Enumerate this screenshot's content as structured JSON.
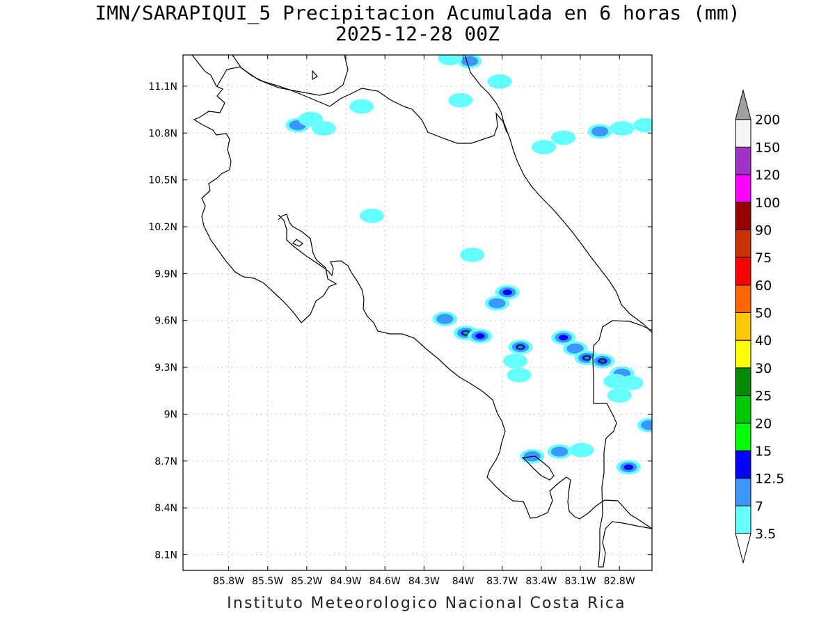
{
  "title": {
    "line1": "IMN/SARAPIQUI_5 Precipitacion Acumulada en 6 horas (mm)",
    "line2": "2025-12-28 00Z"
  },
  "footer": "Instituto Meteorologico Nacional Costa Rica",
  "map": {
    "lon_range": [
      -86.15,
      -82.55
    ],
    "lat_range": [
      8.0,
      11.3
    ],
    "lat_ticks": [
      {
        "value": 11.1,
        "label": "11.1N"
      },
      {
        "value": 10.8,
        "label": "10.8N"
      },
      {
        "value": 10.5,
        "label": "10.5N"
      },
      {
        "value": 10.2,
        "label": "10.2N"
      },
      {
        "value": 9.9,
        "label": "9.9N"
      },
      {
        "value": 9.6,
        "label": "9.6N"
      },
      {
        "value": 9.3,
        "label": "9.3N"
      },
      {
        "value": 9.0,
        "label": "9N"
      },
      {
        "value": 8.7,
        "label": "8.7N"
      },
      {
        "value": 8.4,
        "label": "8.4N"
      },
      {
        "value": 8.1,
        "label": "8.1N"
      }
    ],
    "lon_ticks": [
      {
        "value": -85.8,
        "label": "85.8W"
      },
      {
        "value": -85.5,
        "label": "85.5W"
      },
      {
        "value": -85.2,
        "label": "85.2W"
      },
      {
        "value": -84.9,
        "label": "84.9W"
      },
      {
        "value": -84.6,
        "label": "84.6W"
      },
      {
        "value": -84.3,
        "label": "84.3W"
      },
      {
        "value": -84.0,
        "label": "84W"
      },
      {
        "value": -83.7,
        "label": "83.7W"
      },
      {
        "value": -83.4,
        "label": "83.4W"
      },
      {
        "value": -83.1,
        "label": "83.1W"
      },
      {
        "value": -82.8,
        "label": "82.8W"
      }
    ],
    "grid": "dotted"
  },
  "colorbar": {
    "levels": [
      "3.5",
      "7",
      "12.5",
      "15",
      "20",
      "25",
      "30",
      "40",
      "50",
      "60",
      "75",
      "90",
      "100",
      "120",
      "150",
      "200"
    ],
    "colors": [
      "#64ffff",
      "#3c96ff",
      "#0000ff",
      "#00ff00",
      "#00c800",
      "#008c00",
      "#ffff00",
      "#ffc800",
      "#ff6400",
      "#ff0000",
      "#c83200",
      "#960000",
      "#ff00ff",
      "#a032c8",
      "#f5f5f5",
      "#a0a0a0"
    ],
    "below_color": "#ffffff"
  },
  "precip_cells": [
    {
      "lon": -85.27,
      "lat": 10.85,
      "mm": 7
    },
    {
      "lon": -85.17,
      "lat": 10.89,
      "mm": 3.5
    },
    {
      "lon": -85.07,
      "lat": 10.83,
      "mm": 3.5
    },
    {
      "lon": -84.78,
      "lat": 10.97,
      "mm": 3.5
    },
    {
      "lon": -84.02,
      "lat": 11.01,
      "mm": 3.5
    },
    {
      "lon": -83.72,
      "lat": 11.13,
      "mm": 3.5
    },
    {
      "lon": -83.95,
      "lat": 11.26,
      "mm": 7
    },
    {
      "lon": -84.1,
      "lat": 11.28,
      "mm": 3.5
    },
    {
      "lon": -82.95,
      "lat": 10.81,
      "mm": 7
    },
    {
      "lon": -82.78,
      "lat": 10.83,
      "mm": 3.5
    },
    {
      "lon": -82.6,
      "lat": 10.85,
      "mm": 3.5
    },
    {
      "lon": -83.23,
      "lat": 10.77,
      "mm": 3.5
    },
    {
      "lon": -83.38,
      "lat": 10.71,
      "mm": 3.5
    },
    {
      "lon": -83.66,
      "lat": 9.78,
      "mm": 12.5
    },
    {
      "lon": -83.74,
      "lat": 9.71,
      "mm": 7
    },
    {
      "lon": -84.14,
      "lat": 9.61,
      "mm": 7
    },
    {
      "lon": -83.98,
      "lat": 9.52,
      "mm": 20
    },
    {
      "lon": -83.87,
      "lat": 9.5,
      "mm": 12.5
    },
    {
      "lon": -83.56,
      "lat": 9.43,
      "mm": 20
    },
    {
      "lon": -83.6,
      "lat": 9.34,
      "mm": 3.5
    },
    {
      "lon": -83.57,
      "lat": 9.25,
      "mm": 3.5
    },
    {
      "lon": -83.23,
      "lat": 9.49,
      "mm": 12.5
    },
    {
      "lon": -83.14,
      "lat": 9.42,
      "mm": 7
    },
    {
      "lon": -83.05,
      "lat": 9.36,
      "mm": 20
    },
    {
      "lon": -82.93,
      "lat": 9.34,
      "mm": 25
    },
    {
      "lon": -82.78,
      "lat": 9.26,
      "mm": 7
    },
    {
      "lon": -82.83,
      "lat": 9.21,
      "mm": 3.5
    },
    {
      "lon": -82.8,
      "lat": 9.12,
      "mm": 3.5
    },
    {
      "lon": -82.71,
      "lat": 9.2,
      "mm": 3.5
    },
    {
      "lon": -82.57,
      "lat": 8.93,
      "mm": 7
    },
    {
      "lon": -82.73,
      "lat": 8.66,
      "mm": 12.5
    },
    {
      "lon": -83.47,
      "lat": 8.73,
      "mm": 7
    },
    {
      "lon": -83.26,
      "lat": 8.76,
      "mm": 7
    },
    {
      "lon": -83.09,
      "lat": 8.77,
      "mm": 3.5
    },
    {
      "lon": -84.7,
      "lat": 10.27,
      "mm": 3.5
    },
    {
      "lon": -83.93,
      "lat": 10.02,
      "mm": 3.5
    }
  ]
}
